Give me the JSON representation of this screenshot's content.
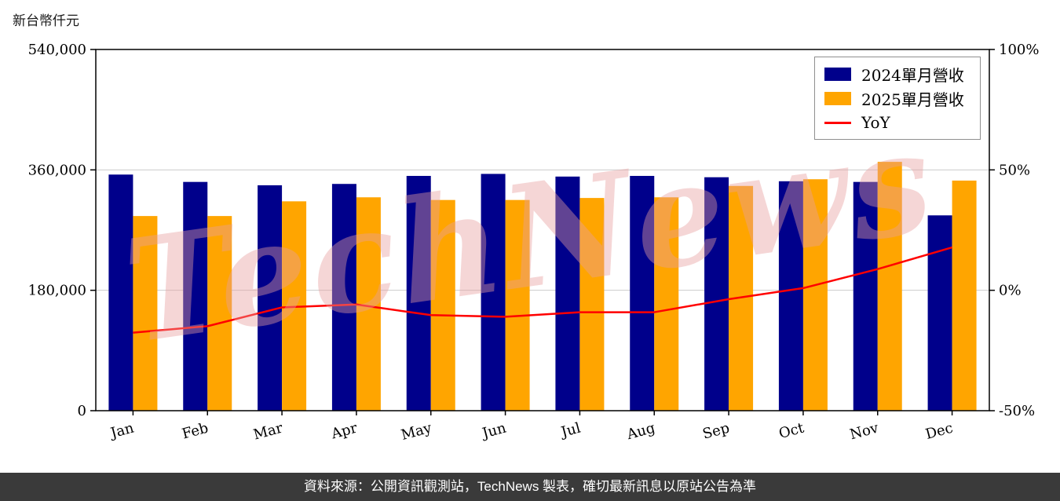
{
  "chart_data": {
    "type": "bar",
    "title": "",
    "watermark": "TechNews",
    "categories": [
      "Jan",
      "Feb",
      "Mar",
      "Apr",
      "May",
      "Jun",
      "Jul",
      "Aug",
      "Sep",
      "Oct",
      "Nov",
      "Dec"
    ],
    "series": [
      {
        "name": "2024單月營收",
        "type": "bar",
        "color": "#00008B",
        "axis": "left",
        "values": [
          353000,
          342000,
          337000,
          339000,
          351000,
          354000,
          350000,
          351000,
          349000,
          343000,
          342000,
          292000
        ]
      },
      {
        "name": "2025單月營收",
        "type": "bar",
        "color": "#FFA500",
        "axis": "left",
        "values": [
          291000,
          291000,
          313000,
          319000,
          315000,
          315000,
          318000,
          319000,
          336000,
          346000,
          372000,
          344000
        ]
      },
      {
        "name": "YoY",
        "type": "line",
        "color": "#FF0000",
        "axis": "right",
        "values": [
          -17.6,
          -14.9,
          -7.1,
          -5.9,
          -10.3,
          -11.0,
          -9.1,
          -9.1,
          -3.7,
          0.9,
          8.8,
          17.8
        ]
      }
    ],
    "left_axis": {
      "label": "新台幣仟元",
      "min": 0,
      "max": 540000,
      "ticks": [
        {
          "label": "540,000",
          "value": 540000
        },
        {
          "label": "360,000",
          "value": 360000
        },
        {
          "label": "180,000",
          "value": 180000
        },
        {
          "label": "0",
          "value": 0
        }
      ]
    },
    "right_axis": {
      "min": -50,
      "max": 100,
      "ticks": [
        {
          "label": "100%",
          "value": 100
        },
        {
          "label": "50%",
          "value": 50
        },
        {
          "label": "0%",
          "value": 0
        },
        {
          "label": "-50%",
          "value": -50
        }
      ]
    },
    "legend_position": "top-right",
    "grid": "horizontal",
    "colors": {
      "grid": "#cccccc",
      "axis": "#000000",
      "watermark": "#e89f9f"
    }
  },
  "footer": {
    "text": "資料來源：公開資訊觀測站，TechNews 製表，確切最新訊息以原站公告為準",
    "bg": "#3a3a3a"
  }
}
